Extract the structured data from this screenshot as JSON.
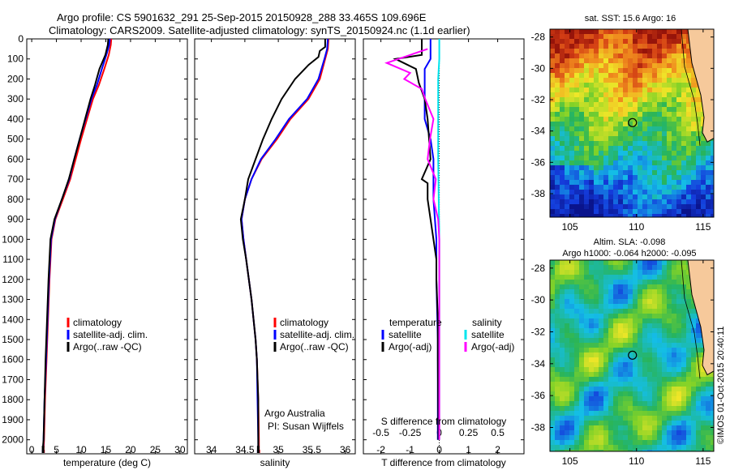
{
  "header": {
    "line1": "Argo profile: CS 5901632_291 25-Sep-2015 20150928_288 33.465S 109.696E",
    "line2": "Climatology: CARS2009. Satellite-adjusted climatology: synTS_20150924.nc (1.1d earlier)"
  },
  "colors": {
    "climatology": "#ff0000",
    "satellite": "#0000ff",
    "argo": "#000000",
    "satellite_s": "#00e5ee",
    "argo_s": "#ff00ff",
    "land": "#f6c99b"
  },
  "chart_data": [
    {
      "type": "line",
      "id": "temperature",
      "xlabel": "temperature (deg C)",
      "ylabel": "",
      "xlim": [
        -1,
        31.5
      ],
      "ylim": [
        2070,
        0
      ],
      "xticks": [
        0,
        5,
        10,
        15,
        20,
        25,
        30
      ],
      "yticks": [
        0,
        100,
        200,
        300,
        400,
        500,
        600,
        700,
        800,
        900,
        1000,
        1100,
        1200,
        1300,
        1400,
        1500,
        1600,
        1700,
        1800,
        1900,
        2000
      ],
      "legend": [
        "climatology",
        "satellite-adj. clim.",
        "Argo(..raw -QC)"
      ],
      "series": [
        {
          "name": "climatology",
          "color": "#ff0000",
          "points": [
            [
              16.1,
              0
            ],
            [
              16.0,
              30
            ],
            [
              15.6,
              80
            ],
            [
              14.7,
              150
            ],
            [
              13.6,
              230
            ],
            [
              12.4,
              300
            ],
            [
              11.2,
              400
            ],
            [
              10.0,
              500
            ],
            [
              8.9,
              600
            ],
            [
              7.8,
              700
            ],
            [
              6.3,
              800
            ],
            [
              4.8,
              900
            ],
            [
              4.0,
              1000
            ],
            [
              3.6,
              1200
            ],
            [
              3.3,
              1400
            ],
            [
              3.0,
              1600
            ],
            [
              2.7,
              1800
            ],
            [
              2.5,
              2000
            ],
            [
              2.4,
              2050
            ]
          ]
        },
        {
          "name": "satellite-adj. clim.",
          "color": "#0000ff",
          "points": [
            [
              15.8,
              0
            ],
            [
              15.7,
              30
            ],
            [
              15.1,
              80
            ],
            [
              14.2,
              150
            ],
            [
              13.2,
              230
            ],
            [
              12.1,
              300
            ],
            [
              10.9,
              400
            ],
            [
              9.7,
              500
            ],
            [
              8.6,
              600
            ],
            [
              7.6,
              700
            ],
            [
              6.1,
              800
            ],
            [
              4.7,
              900
            ],
            [
              3.9,
              1000
            ],
            [
              3.5,
              1200
            ],
            [
              3.2,
              1400
            ],
            [
              2.9,
              1600
            ],
            [
              2.6,
              1800
            ],
            [
              2.4,
              2000
            ],
            [
              2.3,
              2050
            ]
          ]
        },
        {
          "name": "Argo(..raw -QC)",
          "color": "#000000",
          "points": [
            [
              15.5,
              0
            ],
            [
              15.4,
              30
            ],
            [
              14.9,
              80
            ],
            [
              13.7,
              150
            ],
            [
              12.8,
              230
            ],
            [
              11.9,
              300
            ],
            [
              10.8,
              400
            ],
            [
              9.7,
              500
            ],
            [
              8.6,
              600
            ],
            [
              7.5,
              700
            ],
            [
              6.1,
              800
            ],
            [
              4.6,
              900
            ],
            [
              3.8,
              1000
            ],
            [
              3.4,
              1200
            ],
            [
              3.1,
              1400
            ],
            [
              2.8,
              1600
            ],
            [
              2.6,
              1800
            ],
            [
              2.4,
              2000
            ],
            [
              2.3,
              2030
            ]
          ]
        }
      ]
    },
    {
      "type": "line",
      "id": "salinity",
      "xlabel": "salinity",
      "ylabel": "",
      "xlim": [
        33.75,
        36.15
      ],
      "ylim": [
        2070,
        0
      ],
      "xticks": [
        34,
        34.5,
        35,
        35.5,
        36
      ],
      "legend": [
        "climatology",
        "satellite-adj. clim.",
        "Argo(..raw -QC)"
      ],
      "annotation": [
        "Argo Australia",
        "PI: Susan Wijffels"
      ],
      "series": [
        {
          "name": "climatology",
          "color": "#ff0000",
          "points": [
            [
              35.75,
              0
            ],
            [
              35.74,
              50
            ],
            [
              35.7,
              100
            ],
            [
              35.62,
              200
            ],
            [
              35.45,
              300
            ],
            [
              35.18,
              400
            ],
            [
              34.98,
              500
            ],
            [
              34.75,
              600
            ],
            [
              34.6,
              700
            ],
            [
              34.5,
              800
            ],
            [
              34.45,
              900
            ],
            [
              34.48,
              1000
            ],
            [
              34.52,
              1100
            ],
            [
              34.56,
              1200
            ],
            [
              34.6,
              1300
            ],
            [
              34.63,
              1400
            ],
            [
              34.66,
              1500
            ],
            [
              34.68,
              1600
            ],
            [
              34.7,
              1800
            ],
            [
              34.71,
              2000
            ],
            [
              34.71,
              2050
            ]
          ]
        },
        {
          "name": "satellite-adj. clim.",
          "color": "#0000ff",
          "points": [
            [
              35.74,
              0
            ],
            [
              35.73,
              50
            ],
            [
              35.69,
              100
            ],
            [
              35.6,
              200
            ],
            [
              35.43,
              300
            ],
            [
              35.16,
              400
            ],
            [
              34.96,
              500
            ],
            [
              34.74,
              600
            ],
            [
              34.6,
              700
            ],
            [
              34.5,
              800
            ],
            [
              34.45,
              900
            ],
            [
              34.48,
              1000
            ],
            [
              34.52,
              1100
            ],
            [
              34.56,
              1200
            ],
            [
              34.6,
              1300
            ],
            [
              34.63,
              1400
            ],
            [
              34.66,
              1500
            ],
            [
              34.68,
              1600
            ],
            [
              34.69,
              1800
            ],
            [
              34.7,
              2000
            ],
            [
              34.7,
              2050
            ]
          ]
        },
        {
          "name": "Argo(..raw -QC)",
          "color": "#000000",
          "points": [
            [
              35.7,
              0
            ],
            [
              35.7,
              40
            ],
            [
              35.62,
              60
            ],
            [
              35.6,
              90
            ],
            [
              35.45,
              130
            ],
            [
              35.25,
              200
            ],
            [
              35.05,
              300
            ],
            [
              34.9,
              400
            ],
            [
              34.77,
              500
            ],
            [
              34.66,
              600
            ],
            [
              34.55,
              700
            ],
            [
              34.5,
              800
            ],
            [
              34.44,
              900
            ],
            [
              34.47,
              1000
            ],
            [
              34.52,
              1100
            ],
            [
              34.56,
              1200
            ],
            [
              34.6,
              1300
            ],
            [
              34.63,
              1400
            ],
            [
              34.66,
              1500
            ],
            [
              34.68,
              1600
            ],
            [
              34.7,
              1800
            ],
            [
              34.7,
              2000
            ],
            [
              34.7,
              2030
            ]
          ]
        }
      ]
    },
    {
      "type": "line",
      "id": "differences",
      "xlabel": "T difference from climatology",
      "xlabel_top": "S difference from climatology",
      "ylabel": "",
      "xlim": [
        -2.6,
        2.9
      ],
      "ylim": [
        2070,
        0
      ],
      "xticks": [
        -2,
        -1,
        0,
        1,
        2
      ],
      "xticks_s": [
        -0.5,
        -0.25,
        0,
        0.25,
        0.5
      ],
      "s_scale": 4,
      "legend_t_title": "temperature",
      "legend_s_title": "salinity",
      "legend_t": [
        "satellite",
        "Argo(-adj)"
      ],
      "legend_s": [
        "satellite",
        "Argo(-adj)"
      ],
      "series": [
        {
          "name": "satellite",
          "kind": "T",
          "color": "#0000ff",
          "points": [
            [
              -0.3,
              0
            ],
            [
              -0.3,
              100
            ],
            [
              -0.5,
              150
            ],
            [
              -0.5,
              250
            ],
            [
              -0.5,
              400
            ],
            [
              -0.3,
              500
            ],
            [
              -0.2,
              600
            ],
            [
              -0.2,
              700
            ],
            [
              -0.2,
              800
            ],
            [
              -0.1,
              1000
            ],
            [
              -0.1,
              1200
            ],
            [
              -0.05,
              1500
            ],
            [
              -0.05,
              2000
            ]
          ]
        },
        {
          "name": "Argo(-adj)",
          "kind": "T",
          "color": "#000000",
          "points": [
            [
              -0.6,
              0
            ],
            [
              -0.6,
              80
            ],
            [
              -1.5,
              100
            ],
            [
              -0.8,
              150
            ],
            [
              -0.7,
              220
            ],
            [
              -0.5,
              300
            ],
            [
              -0.4,
              400
            ],
            [
              -0.35,
              500
            ],
            [
              -0.3,
              600
            ],
            [
              -0.6,
              700
            ],
            [
              -0.4,
              720
            ],
            [
              -0.4,
              800
            ],
            [
              -0.3,
              900
            ],
            [
              -0.2,
              1000
            ],
            [
              -0.1,
              1100
            ],
            [
              -0.1,
              1200
            ],
            [
              -0.05,
              1400
            ],
            [
              -0.05,
              1600
            ],
            [
              -0.03,
              2000
            ]
          ]
        },
        {
          "name": "satellite",
          "kind": "S",
          "color": "#00e5ee",
          "points": [
            [
              0.0,
              0
            ],
            [
              0.0,
              100
            ],
            [
              -0.01,
              200
            ],
            [
              -0.01,
              400
            ],
            [
              -0.01,
              600
            ],
            [
              -0.005,
              800
            ],
            [
              0.0,
              1000
            ],
            [
              0.0,
              1400
            ],
            [
              0.0,
              2000
            ]
          ]
        },
        {
          "name": "Argo(-adj)",
          "kind": "S",
          "color": "#ff00ff",
          "points": [
            [
              -0.1,
              50
            ],
            [
              -0.45,
              120
            ],
            [
              -0.25,
              170
            ],
            [
              -0.3,
              200
            ],
            [
              -0.15,
              250
            ],
            [
              -0.12,
              300
            ],
            [
              -0.05,
              400
            ],
            [
              -0.08,
              500
            ],
            [
              -0.1,
              600
            ],
            [
              -0.03,
              700
            ],
            [
              -0.05,
              800
            ],
            [
              -0.01,
              900
            ],
            [
              0.0,
              1000
            ],
            [
              0.0,
              1500
            ],
            [
              0.0,
              2000
            ]
          ]
        }
      ]
    }
  ],
  "maps": [
    {
      "title": "sat. SST: 15.6 Argo: 16",
      "xticks": [
        "105",
        "110",
        "115"
      ],
      "yticks": [
        "-28",
        "-30",
        "-32",
        "-34",
        "-36",
        "-38"
      ],
      "kind": "sst"
    },
    {
      "title_lines": [
        "Altim. SLA: -0.098",
        "Argo h1000: -0.064 h2000: -0.095"
      ],
      "xticks": [
        "105",
        "110",
        "115"
      ],
      "yticks": [
        "-28",
        "-30",
        "-32",
        "-34",
        "-36",
        "-38"
      ],
      "kind": "sla"
    }
  ],
  "credit": "©IMOS 01-Oct-2015 20:40:11"
}
